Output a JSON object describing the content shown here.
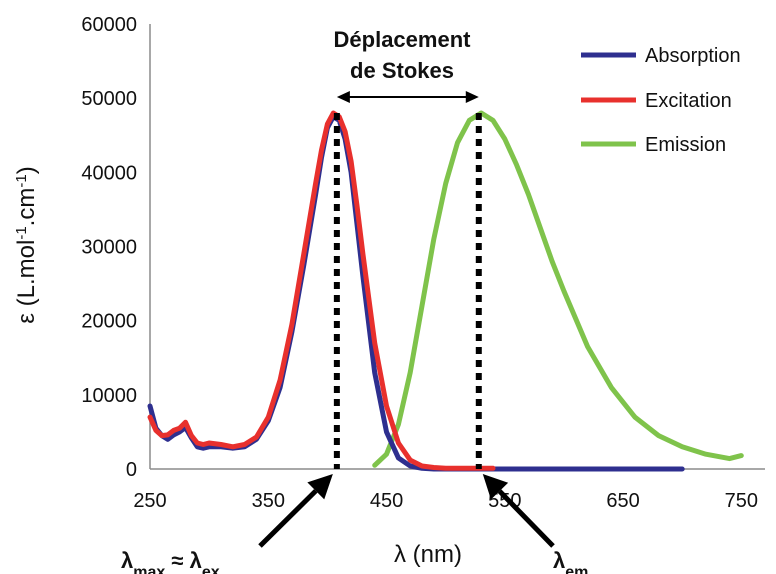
{
  "chart_data": {
    "type": "line",
    "title": "",
    "xlabel": "λ (nm)",
    "ylabel_parts": {
      "main": "ε (L.mol",
      "sup1": "-1",
      "mid": ".cm",
      "sup2": "-1",
      "end": ")"
    },
    "xlim": [
      250,
      770
    ],
    "ylim": [
      0,
      60000
    ],
    "x_ticks": [
      250,
      350,
      450,
      550,
      650,
      750
    ],
    "y_ticks": [
      0,
      10000,
      20000,
      30000,
      40000,
      50000,
      60000
    ],
    "grid": false,
    "legend_position": "top-right",
    "series": [
      {
        "name": "Absorption",
        "color": "#2e2f8f",
        "x": [
          250,
          255,
          260,
          265,
          270,
          275,
          280,
          285,
          290,
          295,
          300,
          310,
          320,
          330,
          340,
          350,
          360,
          370,
          380,
          390,
          395,
          400,
          405,
          410,
          415,
          420,
          425,
          430,
          440,
          450,
          460,
          470,
          480,
          490,
          500,
          520,
          540,
          560,
          600,
          650,
          700
        ],
        "y": [
          8500,
          5500,
          4500,
          4000,
          4600,
          5000,
          5600,
          4200,
          3000,
          2800,
          3000,
          3000,
          2800,
          3000,
          4000,
          6500,
          11000,
          18500,
          27500,
          37000,
          42000,
          46000,
          47500,
          47000,
          44500,
          40000,
          33000,
          26000,
          13000,
          5000,
          1500,
          400,
          100,
          0,
          0,
          0,
          0,
          0,
          0,
          0,
          0
        ]
      },
      {
        "name": "Excitation",
        "color": "#e8302d",
        "x": [
          250,
          255,
          260,
          265,
          270,
          275,
          280,
          285,
          290,
          295,
          300,
          310,
          320,
          330,
          340,
          350,
          360,
          370,
          380,
          390,
          395,
          400,
          405,
          410,
          415,
          420,
          425,
          430,
          440,
          450,
          460,
          470,
          480,
          490,
          500,
          510,
          520,
          530,
          540
        ],
        "y": [
          7000,
          5200,
          4500,
          4600,
          5200,
          5500,
          6300,
          4500,
          3500,
          3300,
          3500,
          3300,
          3000,
          3300,
          4300,
          7000,
          12000,
          19500,
          29000,
          38500,
          43000,
          46500,
          48000,
          47500,
          45500,
          41500,
          35500,
          29000,
          17000,
          8500,
          3500,
          1200,
          400,
          200,
          100,
          100,
          100,
          100,
          100
        ]
      },
      {
        "name": "Emission",
        "color": "#7fc34b",
        "x": [
          440,
          450,
          460,
          470,
          480,
          490,
          500,
          510,
          520,
          530,
          540,
          550,
          560,
          570,
          580,
          590,
          600,
          620,
          640,
          660,
          680,
          700,
          720,
          740,
          750
        ],
        "y": [
          500,
          2000,
          6000,
          13000,
          22000,
          31000,
          38500,
          44000,
          47000,
          48000,
          47000,
          44500,
          41000,
          37000,
          32500,
          28000,
          24000,
          16500,
          11000,
          7000,
          4500,
          3000,
          2000,
          1400,
          1800
        ]
      }
    ],
    "annotations": {
      "stokes_line1": "Déplacement",
      "stokes_line2": "de Stokes",
      "lambda_max_label": "λ",
      "lambda_max_sub": "max",
      "approx_symbol": " ≈ ",
      "lambda_ex_label": "λ",
      "lambda_ex_sub": "ex",
      "lambda_em_label": "λ",
      "lambda_em_sub": "em",
      "peak_abs_x": 408,
      "peak_em_x": 528
    }
  }
}
